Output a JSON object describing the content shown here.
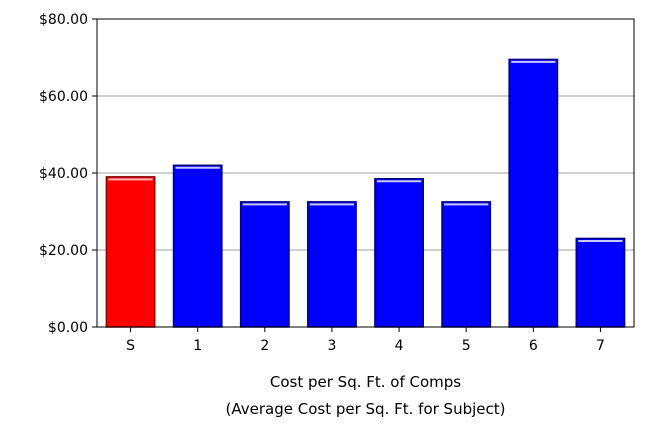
{
  "chart_data": {
    "type": "bar",
    "title": "",
    "categories": [
      "S",
      "1",
      "2",
      "3",
      "4",
      "5",
      "6",
      "7"
    ],
    "values": [
      39,
      42,
      32.5,
      32.5,
      38.5,
      32.5,
      69.5,
      23
    ],
    "highlight_category": "S",
    "xlabel": "Cost per Sq. Ft. of Comps",
    "xlabel_sub": "(Average Cost per Sq. Ft. for Subject)",
    "ylabel": "",
    "ylim": [
      0,
      80
    ],
    "yticks": [
      0,
      20,
      40,
      60,
      80
    ],
    "ytick_labels": [
      "$0.00",
      "$20.00",
      "$40.00",
      "$60.00",
      "$80.00"
    ],
    "grid": true,
    "legend": "none",
    "colors": {
      "subject_fill": "#ff0000",
      "subject_border": "#8b0000",
      "comp_fill": "#0000ff",
      "comp_border": "#000080",
      "highlight": "#c8c8ff",
      "subject_highlight": "#ffb4b4",
      "gridline": "#a0a0a0",
      "frame": "#000000"
    }
  }
}
